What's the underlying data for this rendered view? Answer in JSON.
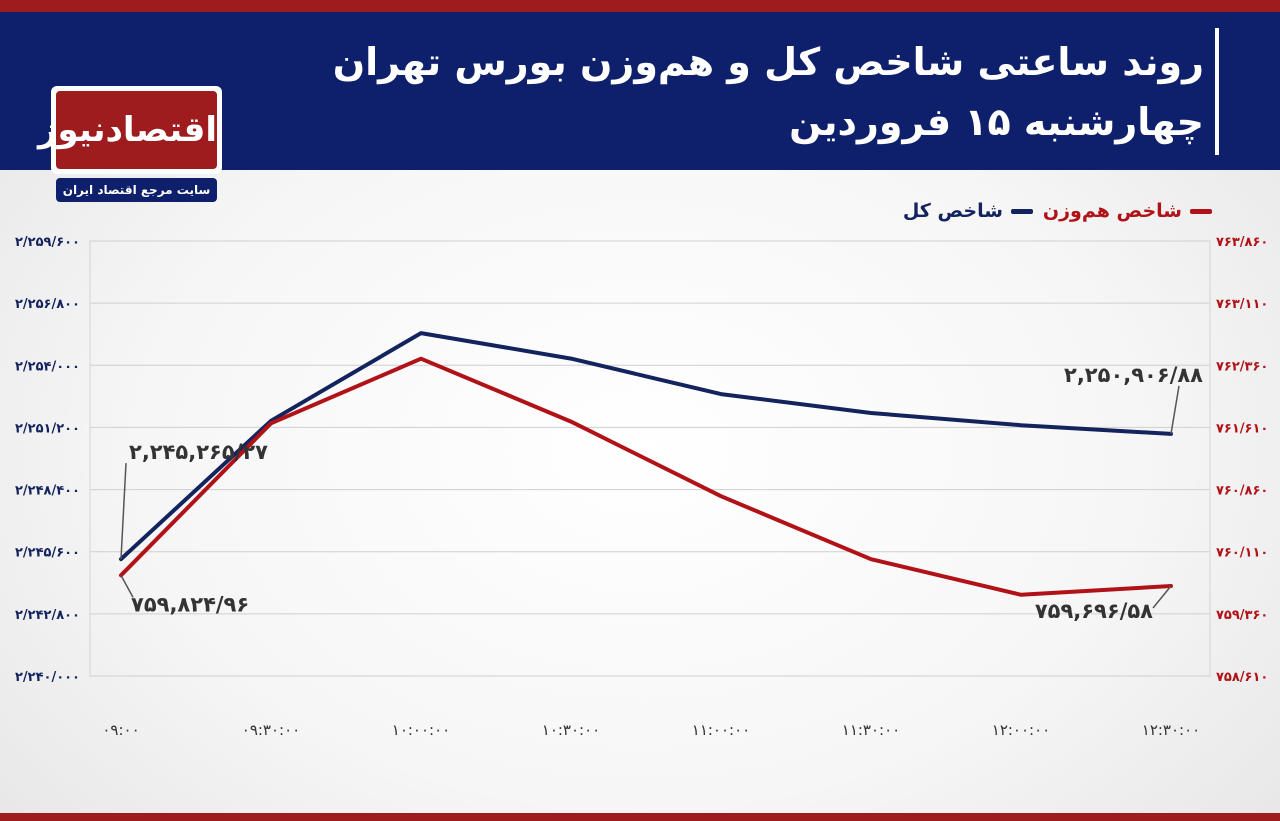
{
  "header": {
    "title": "روند ساعتی شاخص کل و هم‌وزن بورس تهران",
    "subtitle": "چهارشنبه ۱۵ فروردین"
  },
  "logo": {
    "name": "اقتصادنیوز",
    "tagline": "سایت مرجع اقتصاد ایران"
  },
  "colors": {
    "brand_navy": "#0e1f6b",
    "brand_red": "#9e1b1e",
    "series_total": "#13235e",
    "series_equal": "#b11217"
  },
  "chart_data": {
    "type": "line",
    "title": "روند ساعتی شاخص کل و هم‌وزن بورس تهران",
    "x": [
      "۰۹:۰۰",
      "۰۹:۳۰:۰۰",
      "۱۰:۰۰:۰۰",
      "۱۰:۳۰:۰۰",
      "۱۱:۰۰:۰۰",
      "۱۱:۳۰:۰۰",
      "۱۲:۰۰:۰۰",
      "۱۲:۳۰:۰۰"
    ],
    "legend": [
      {
        "label": "شاخص هم‌وزن",
        "color": "#b11217"
      },
      {
        "label": "شاخص کل",
        "color": "#13235e"
      }
    ],
    "legend_position": "top-right",
    "grid": "horizontal",
    "series": [
      {
        "name": "شاخص کل",
        "axis": "left",
        "color": "#13235e",
        "values": [
          2245265.27,
          2251500,
          2255450,
          2254300,
          2252700,
          2251850,
          2251300,
          2250906.88
        ]
      },
      {
        "name": "شاخص هم‌وزن",
        "axis": "right",
        "color": "#b11217",
        "values": [
          759824.96,
          761660,
          762440,
          761680,
          760780,
          760020,
          759590,
          759696.58
        ]
      }
    ],
    "left_axis": {
      "ylim": [
        2240000,
        2259600
      ],
      "ticks": [
        2240000,
        2242800,
        2245600,
        2248400,
        2251200,
        2254000,
        2256800,
        2259600
      ],
      "tick_labels": [
        "۲/۲۴۰/۰۰۰",
        "۲/۲۴۲/۸۰۰",
        "۲/۲۴۵/۶۰۰",
        "۲/۲۴۸/۴۰۰",
        "۲/۲۵۱/۲۰۰",
        "۲/۲۵۴/۰۰۰",
        "۲/۲۵۶/۸۰۰",
        "۲/۲۵۹/۶۰۰"
      ]
    },
    "right_axis": {
      "ylim": [
        758610,
        763860
      ],
      "ticks": [
        758610,
        759360,
        760110,
        760860,
        761610,
        762360,
        763110,
        763860
      ],
      "tick_labels": [
        "۷۵۸/۶۱۰",
        "۷۵۹/۳۶۰",
        "۷۶۰/۱۱۰",
        "۷۶۰/۸۶۰",
        "۷۶۱/۶۱۰",
        "۷۶۲/۳۶۰",
        "۷۶۳/۱۱۰",
        "۷۶۳/۸۶۰"
      ]
    },
    "annotations": [
      {
        "series": "شاخص کل",
        "index": 0,
        "text": "۲,۲۴۵,۲۶۵/۲۷"
      },
      {
        "series": "شاخص کل",
        "index": 7,
        "text": "۲,۲۵۰,۹۰۶/۸۸"
      },
      {
        "series": "شاخص هم‌وزن",
        "index": 0,
        "text": "۷۵۹,۸۲۴/۹۶"
      },
      {
        "series": "شاخص هم‌وزن",
        "index": 7,
        "text": "۷۵۹,۶۹۶/۵۸"
      }
    ]
  }
}
